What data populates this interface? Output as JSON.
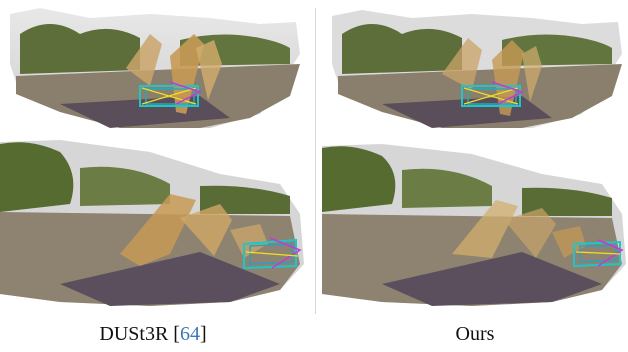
{
  "captions": {
    "left_method": "DUSt3R",
    "left_open_bracket": "[",
    "left_ref": "64",
    "left_close_bracket": "]",
    "right_method": "Ours"
  },
  "colors": {
    "citation_link": "#3a78b8",
    "camera_frustum_cyan": "#1fc6c9",
    "trajectory_magenta": "#c13bd6",
    "trajectory_yellow": "#f0e020",
    "points_tan": "#c9a46a",
    "foliage_green": "#556b2f"
  },
  "icons": {
    "camera_frustums": "camera-frustum-icon",
    "point_cloud": "point-cloud-graphic"
  }
}
